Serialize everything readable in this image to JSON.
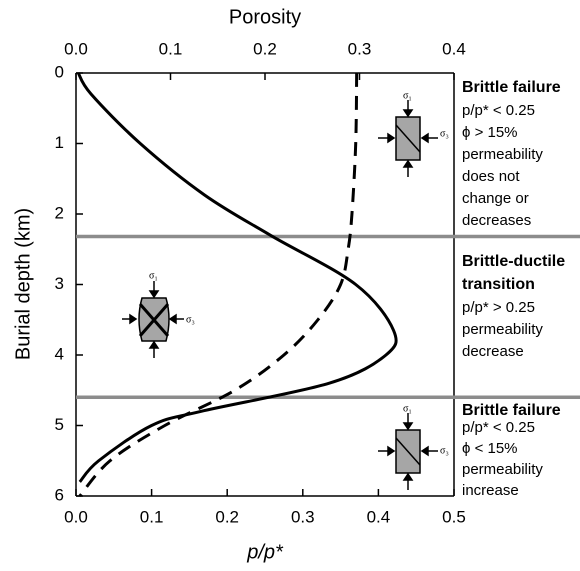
{
  "chart_data": {
    "type": "line",
    "title_top": "Porosity",
    "xlabel": "p/p*",
    "ylabel": "Burial depth (km)",
    "xlim": [
      0,
      0.5
    ],
    "xticks": [
      {
        "value": 0,
        "label": "0.0"
      },
      0.1,
      0.2,
      0.3,
      0.4,
      0.5
    ],
    "x2lim": [
      0,
      0.4
    ],
    "x2ticks": [
      {
        "value": 0,
        "label": "0.0"
      },
      0.1,
      0.2,
      0.3,
      0.4
    ],
    "ylim": [
      0,
      6
    ],
    "yticks": [
      0,
      1,
      2,
      3,
      4,
      5,
      6
    ],
    "y_inverted": true,
    "boundaries": [
      2.32,
      4.6
    ],
    "boundary_color": "#8c8c8c",
    "series": [
      {
        "color": "#000000",
        "dashed": false,
        "axis": "x",
        "x": [
          0.003,
          0.02,
          0.085,
          0.17,
          0.257,
          0.37,
          0.42,
          0.41,
          0.335,
          0.165,
          0.1,
          0.03,
          0.005
        ],
        "y": [
          0,
          0.3,
          1.0,
          1.73,
          2.3,
          3.0,
          3.65,
          4.0,
          4.4,
          4.8,
          5.0,
          5.5,
          5.8
        ]
      },
      {
        "color": "#000000",
        "dashed": true,
        "axis": "x2",
        "x": [
          0.297,
          0.296,
          0.292,
          0.288,
          0.28,
          0.256,
          0.22,
          0.168,
          0.094,
          0.036,
          0.004
        ],
        "y": [
          0,
          1,
          2,
          2.5,
          3,
          3.5,
          4,
          4.5,
          5,
          5.5,
          6
        ]
      }
    ],
    "stress_labels": [
      "σ₁",
      "σ₃"
    ],
    "zones": [
      {
        "title": [
          "Brittle failure"
        ],
        "lines": [
          "p/p* < 0.25",
          "ϕ > 15%",
          "permeability",
          "does not",
          "change or",
          "decreases"
        ]
      },
      {
        "title": [
          "Brittle-ductile",
          "transition"
        ],
        "lines": [
          "p/p* > 0.25",
          "permeability",
          "decrease"
        ]
      },
      {
        "title": [
          "Brittle failure"
        ],
        "lines": [
          "p/p* < 0.25",
          "ϕ < 15%",
          "permeability",
          "increase"
        ]
      }
    ]
  }
}
